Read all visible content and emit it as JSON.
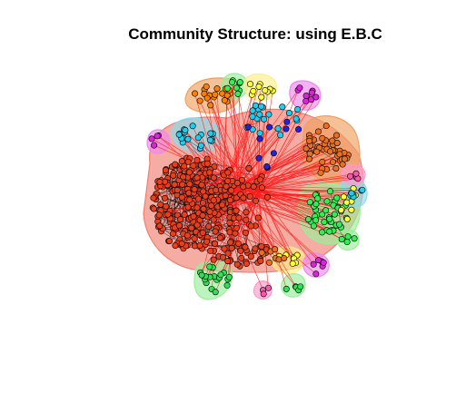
{
  "title": "Community Structure: using E.B.C",
  "colors": {
    "background": "#ffffff",
    "edge_between": "#ff1a1a",
    "edge_within": "#000000",
    "node_outline": "#000000"
  },
  "communities": [
    {
      "name": "red-large",
      "node_color": "#e8401c",
      "hull_color": "#f08070",
      "edge_color": "#111111"
    },
    {
      "name": "orange-top-left",
      "node_color": "#ff7f00",
      "hull_color": "#f0a060",
      "edge_color": "#111111"
    },
    {
      "name": "orange-right",
      "node_color": "#e87020",
      "hull_color": "#f0a060",
      "edge_color": "#111111"
    },
    {
      "name": "green-right",
      "node_color": "#33ee55",
      "hull_color": "#99ee99",
      "edge_color": "#111111"
    },
    {
      "name": "green-bottom",
      "node_color": "#33dd55",
      "hull_color": "#99ee99",
      "edge_color": "#111111"
    },
    {
      "name": "cyan",
      "node_color": "#22ccee",
      "hull_color": "#88ddee",
      "edge_color": "#111111"
    },
    {
      "name": "magenta",
      "node_color": "#dd22dd",
      "hull_color": "#ee88ee",
      "edge_color": "#111111"
    },
    {
      "name": "yellow",
      "node_color": "#ffff33",
      "hull_color": "#ffee88",
      "edge_color": "#111111"
    },
    {
      "name": "blue",
      "node_color": "#2222dd",
      "hull_color": "#9999ee",
      "edge_color": "#111111"
    },
    {
      "name": "pink",
      "node_color": "#ff55aa",
      "hull_color": "#ff99cc",
      "edge_color": "#111111"
    }
  ]
}
